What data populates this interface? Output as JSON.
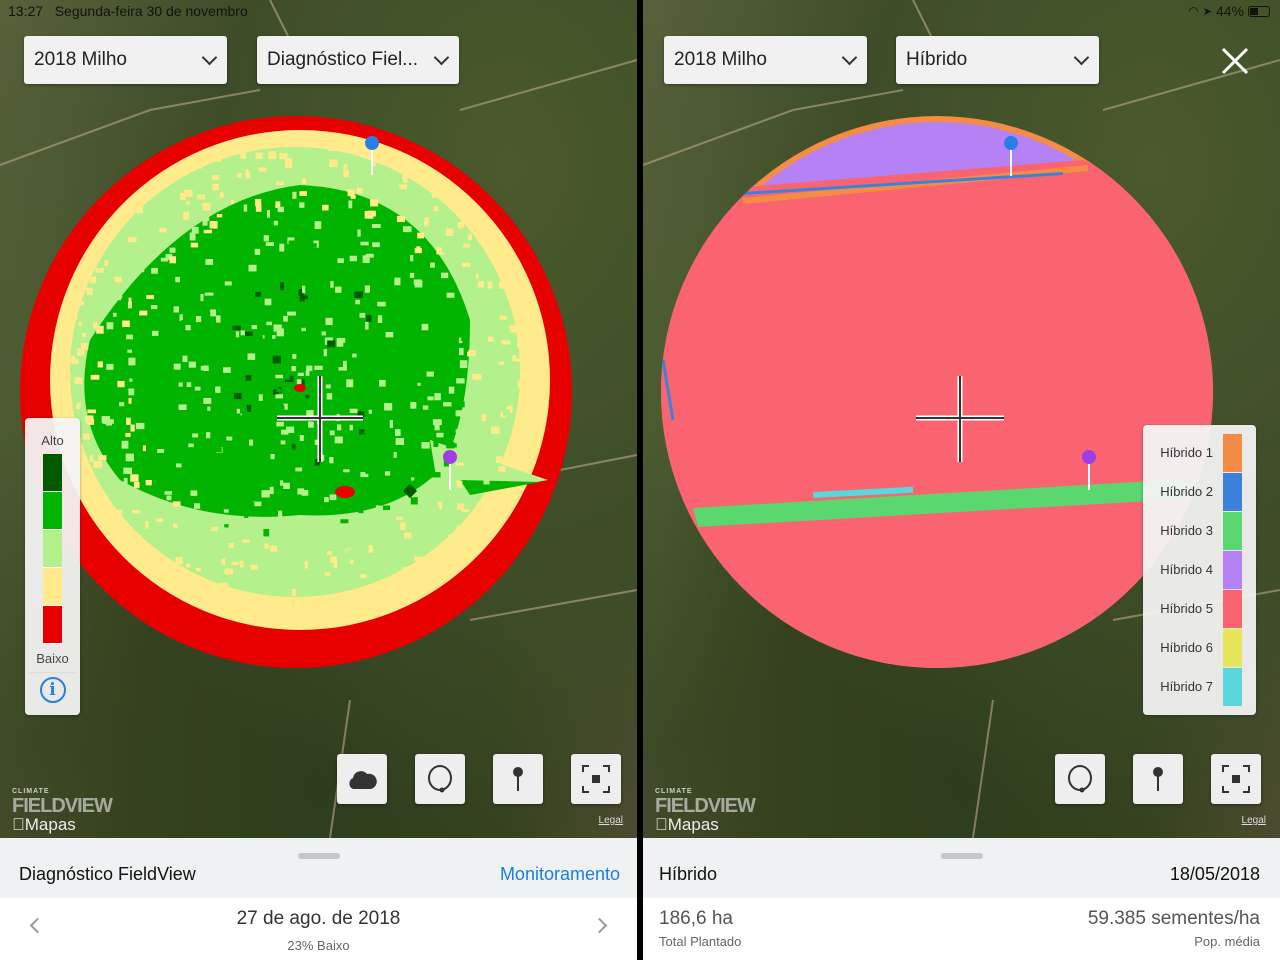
{
  "status_bar": {
    "time": "13:27",
    "date": "Segunda-feira 30 de novembro",
    "battery": "44%",
    "icons": [
      "wifi-icon",
      "location-icon",
      "battery-icon"
    ]
  },
  "left": {
    "season_dropdown": "2018 Milho",
    "layer_dropdown": "Diagnóstico Fiel...",
    "legend": {
      "high": "Alto",
      "low": "Baixo",
      "colors": [
        "#005a00",
        "#00b400",
        "#b4f08c",
        "#ffeb8c",
        "#e60000"
      ],
      "info_icon": "info-icon"
    },
    "buttons": [
      "cloud-icon",
      "lasso-icon",
      "pin-icon",
      "recenter-icon"
    ],
    "logo": {
      "climate": "CLIMATE",
      "fieldview": "FIELDVIEW",
      "maps": "Mapas"
    },
    "legal": "Legal",
    "sheet": {
      "title": "Diagnóstico FieldView",
      "link": "Monitoramento",
      "date": "27 de ago. de 2018",
      "summary": "23% Baixo"
    }
  },
  "right": {
    "season_dropdown": "2018 Milho",
    "layer_dropdown": "Híbrido",
    "legend": [
      {
        "label": "Híbrido 1",
        "color": "#f58c46"
      },
      {
        "label": "Híbrido 2",
        "color": "#3c82dc"
      },
      {
        "label": "Híbrido 3",
        "color": "#5ad76e"
      },
      {
        "label": "Híbrido 4",
        "color": "#b482f5"
      },
      {
        "label": "Híbrido 5",
        "color": "#fa6470"
      },
      {
        "label": "Híbrido 6",
        "color": "#e6e65a"
      },
      {
        "label": "Híbrido 7",
        "color": "#5ad7dc"
      }
    ],
    "buttons": [
      "lasso-icon",
      "pin-icon",
      "recenter-icon"
    ],
    "logo": {
      "climate": "CLIMATE",
      "fieldview": "FIELDVIEW",
      "maps": "Mapas"
    },
    "legal": "Legal",
    "sheet": {
      "title": "Híbrido",
      "date": "18/05/2018",
      "area": "186,6 ha",
      "area_label": "Total Plantado",
      "population": "59.385 sementes/ha",
      "population_label": "Pop. média"
    }
  }
}
